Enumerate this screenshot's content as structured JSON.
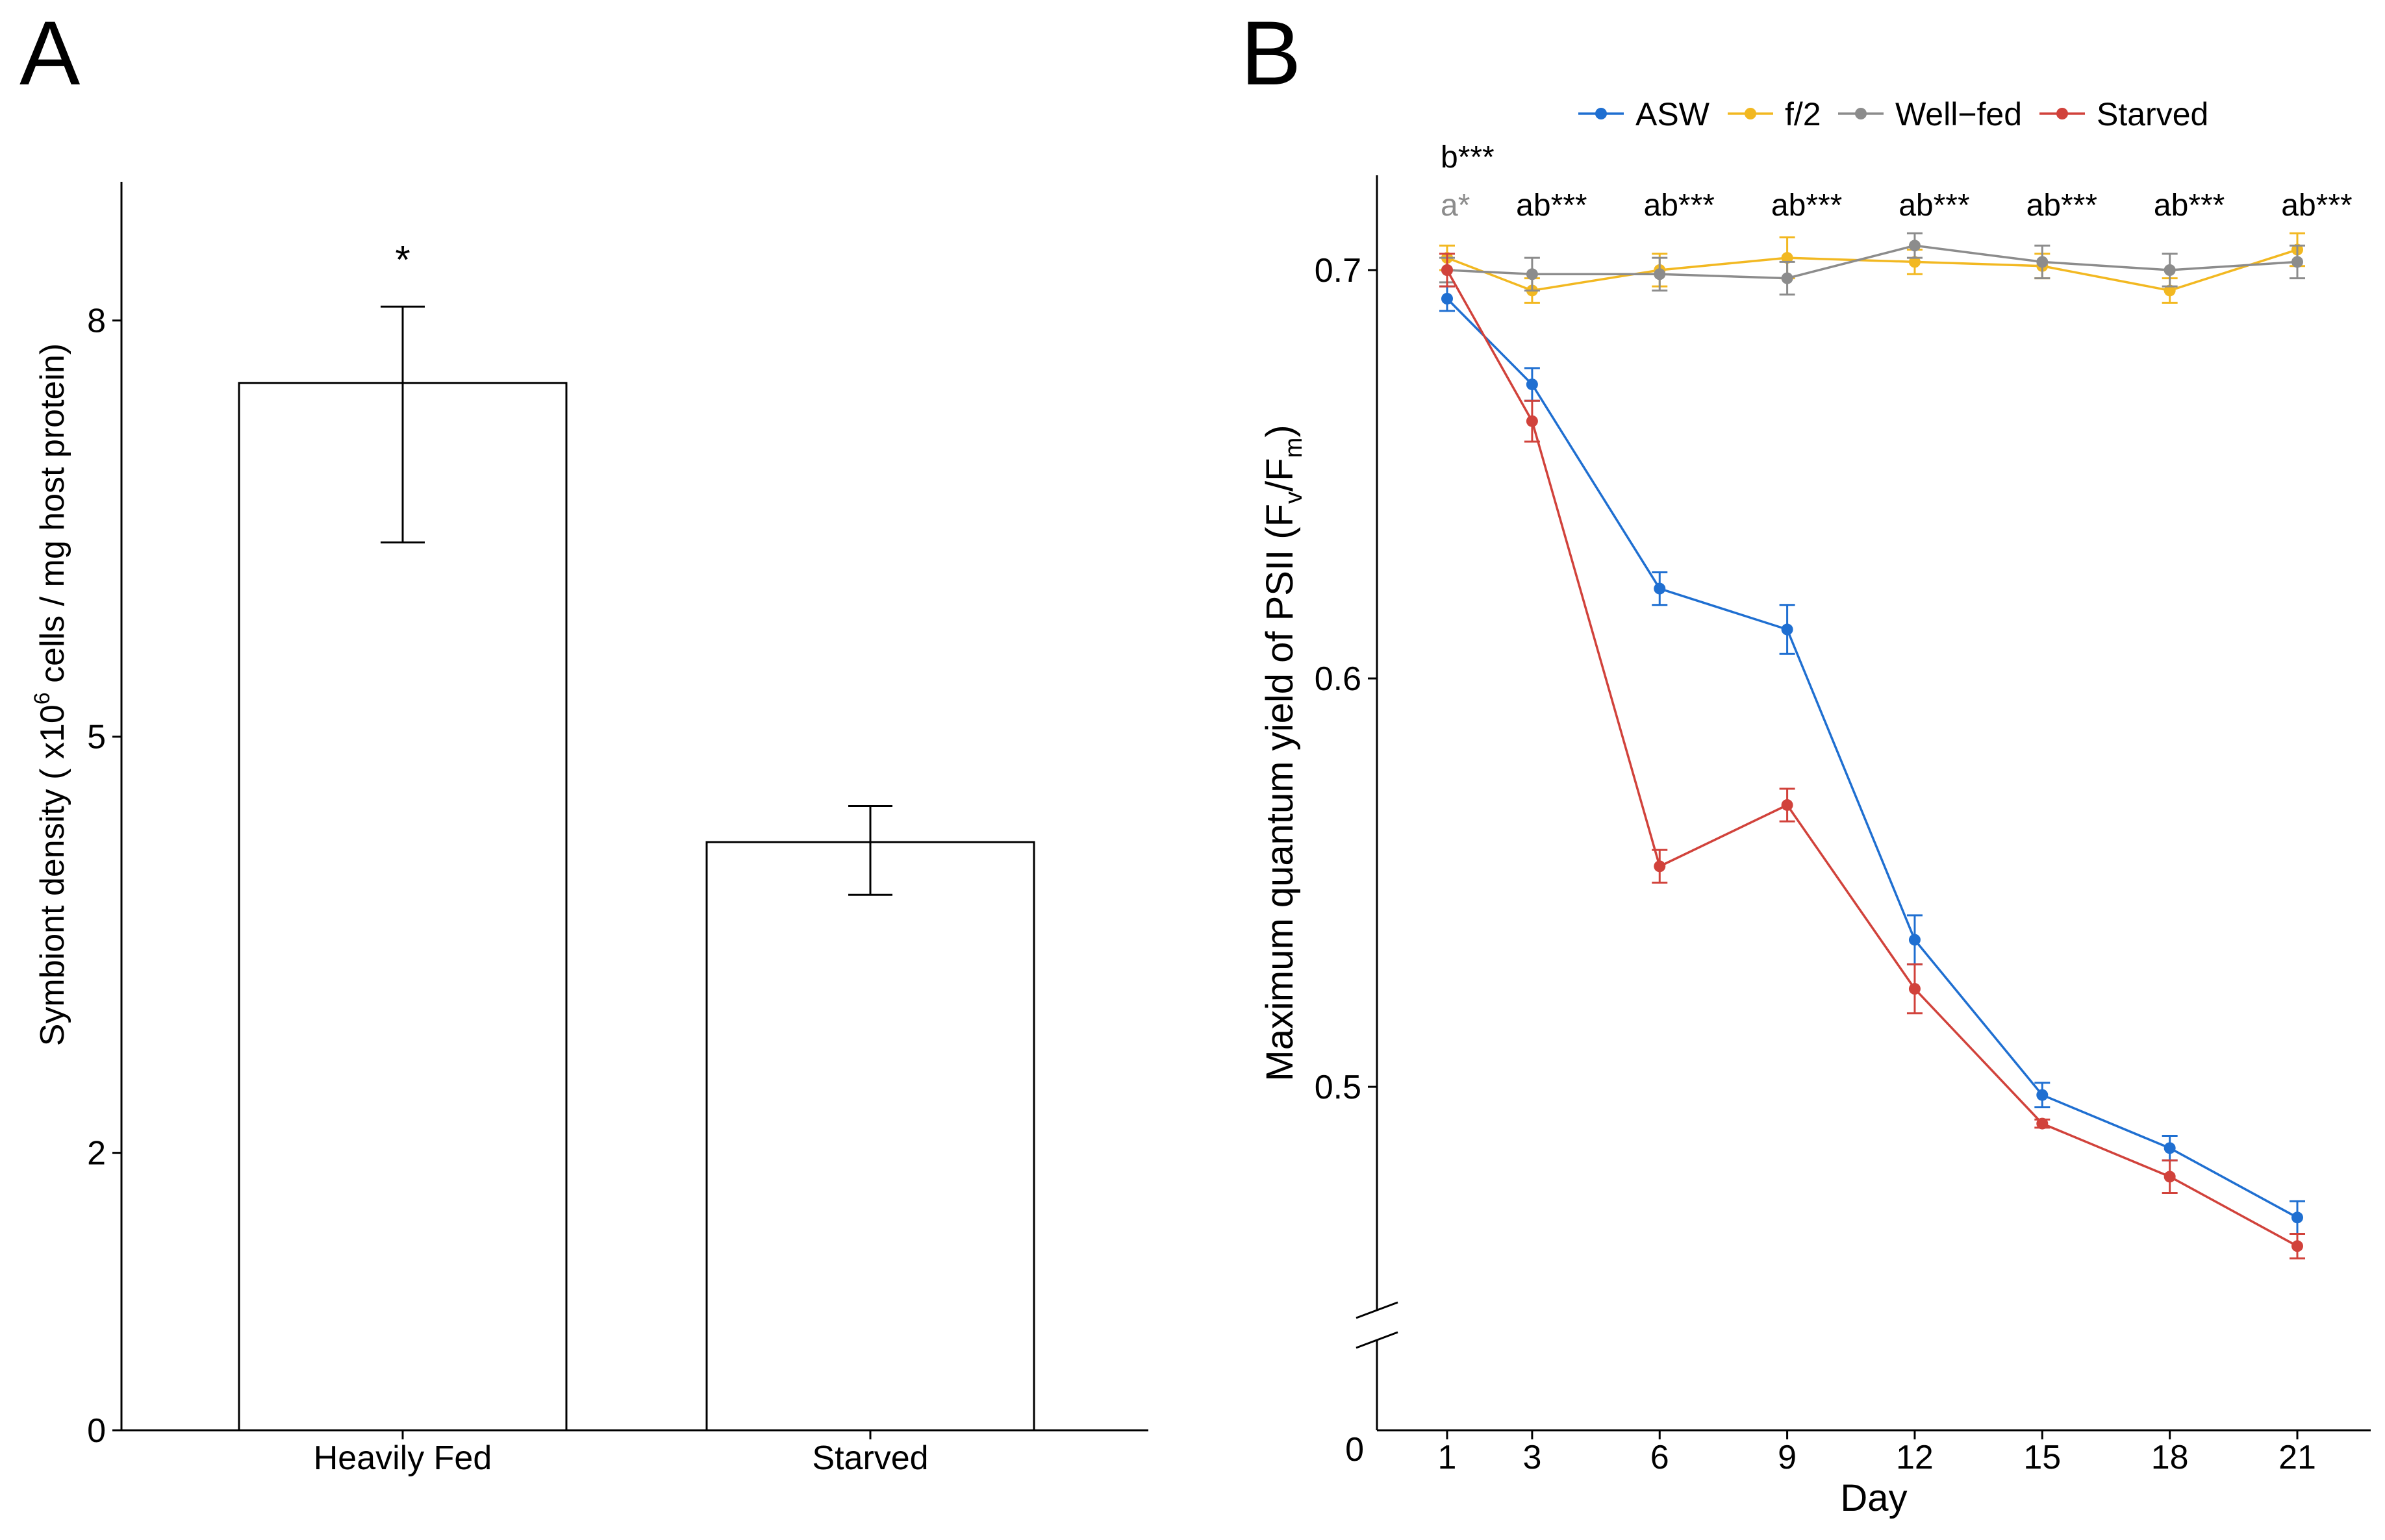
{
  "chart_data": [
    {
      "panel_label": "A",
      "type": "bar",
      "title": "",
      "xlabel": "",
      "ylabel": {
        "prefix": "Symbiont density ( x10",
        "superscript": "6",
        "suffix": " cells / mg host protein)"
      },
      "categories": [
        "Heavily Fed",
        "Starved"
      ],
      "values": [
        7.55,
        4.24
      ],
      "error_low": [
        6.4,
        3.86
      ],
      "error_high": [
        8.1,
        4.5
      ],
      "annotations": [
        "*",
        ""
      ],
      "yticks": [
        0,
        2,
        5,
        8
      ],
      "ytick_labels": [
        "0",
        "2",
        "5",
        "8"
      ],
      "ylim": [
        0,
        9
      ],
      "grid": false
    },
    {
      "panel_label": "B",
      "type": "line",
      "title": "",
      "xlabel": "Day",
      "ylabel": {
        "text": "Maximum quantum yield of PSII (F",
        "sub1": "v",
        "mid": "/F",
        "sub2": "m",
        "end": ")"
      },
      "x": [
        1,
        3,
        6,
        9,
        12,
        15,
        18,
        21
      ],
      "xtick_labels": [
        "1",
        "3",
        "6",
        "9",
        "12",
        "15",
        "18",
        "21"
      ],
      "yticks": [
        0.5,
        0.6,
        0.7
      ],
      "ytick_labels": [
        "0.5",
        "0.6",
        "0.7"
      ],
      "y_zero_label": "0",
      "axis_break": true,
      "ylim": [
        0.455,
        0.722
      ],
      "legend_position": "top",
      "grid": false,
      "series": [
        {
          "name": "ASW",
          "color": "#1f6fd1",
          "values": [
            0.693,
            0.672,
            0.622,
            0.612,
            0.536,
            0.498,
            0.485,
            0.468
          ],
          "errors": [
            0.003,
            0.004,
            0.004,
            0.006,
            0.006,
            0.003,
            0.003,
            0.004
          ]
        },
        {
          "name": "f/2",
          "color": "#f2b821",
          "values": [
            0.703,
            0.695,
            0.7,
            0.703,
            0.702,
            0.701,
            0.695,
            0.705
          ],
          "errors": [
            0.003,
            0.003,
            0.004,
            0.005,
            0.003,
            0.003,
            0.003,
            0.004
          ]
        },
        {
          "name": "Well−fed",
          "color": "#8c8c8c",
          "values": [
            0.7,
            0.699,
            0.699,
            0.698,
            0.706,
            0.702,
            0.7,
            0.702
          ],
          "errors": [
            0.003,
            0.004,
            0.004,
            0.004,
            0.003,
            0.004,
            0.004,
            0.004
          ]
        },
        {
          "name": "Starved",
          "color": "#d1423b",
          "values": [
            0.7,
            0.663,
            0.554,
            0.569,
            0.524,
            0.491,
            0.478,
            0.461
          ],
          "errors": [
            0.004,
            0.005,
            0.004,
            0.004,
            0.006,
            0.001,
            0.004,
            0.003
          ]
        }
      ],
      "significance": {
        "row1": [
          {
            "day": 1,
            "text": "b***"
          }
        ],
        "row2": [
          {
            "day": 1,
            "text": "a*",
            "color": "#8c8c8c"
          },
          {
            "day": 3,
            "text": "ab***"
          },
          {
            "day": 6,
            "text": "ab***"
          },
          {
            "day": 9,
            "text": "ab***"
          },
          {
            "day": 12,
            "text": "ab***"
          },
          {
            "day": 15,
            "text": "ab***"
          },
          {
            "day": 18,
            "text": "ab***"
          },
          {
            "day": 21,
            "text": "ab***"
          }
        ]
      }
    }
  ]
}
